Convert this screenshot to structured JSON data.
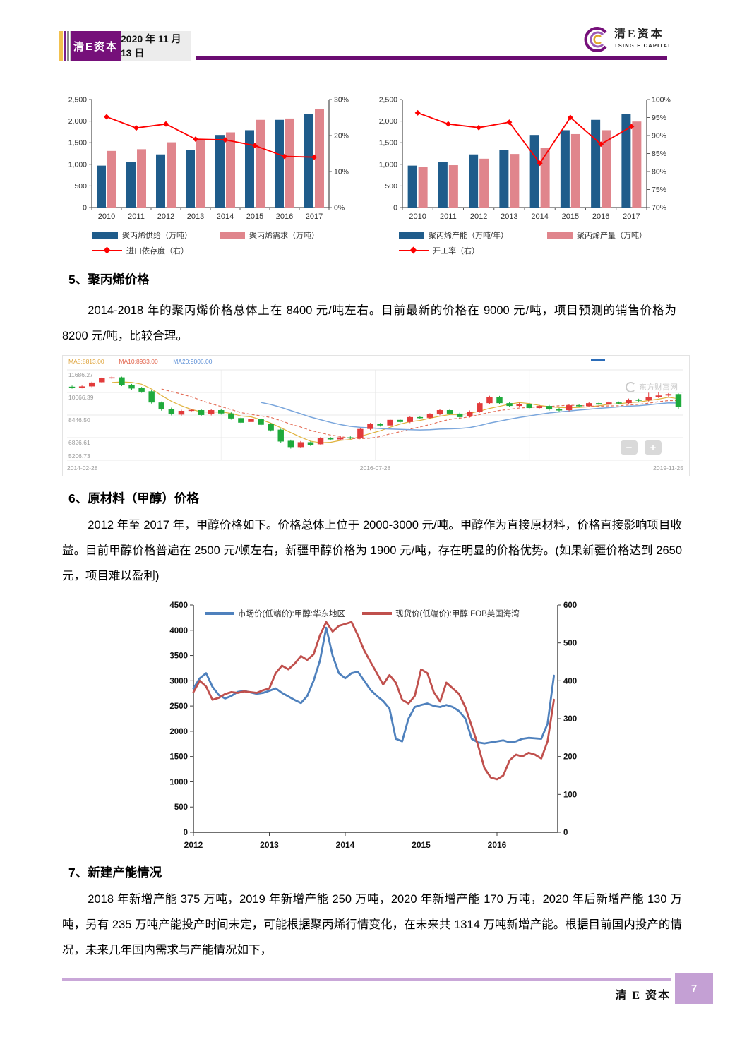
{
  "header": {
    "brand": "清E资本",
    "date": "2020 年 11 月 13 日",
    "logo_title": "清E资本",
    "logo_subtitle": "TSING E CAPITAL"
  },
  "sections": {
    "s5_heading": "5、聚丙烯价格",
    "s5_para": "2014-2018 年的聚丙烯价格总体上在 8400 元/吨左右。目前最新的价格在 9000 元/吨，项目预测的销售价格为 8200 元/吨，比较合理。",
    "s6_heading": "6、原材料（甲醇）价格",
    "s6_para": "2012 年至 2017 年，甲醇价格如下。价格总体上位于 2000-3000 元/吨。甲醇作为直接原材料，价格直接影响项目收益。目前甲醇价格普遍在 2500 元/顿左右，新疆甲醇价格为 1900 元/吨，存在明显的价格优势。(如果新疆价格达到 2650 元，项目难以盈利)",
    "s7_heading": "7、新建产能情况",
    "s7_para": "2018 年新增产能 375 万吨，2019 年新增产能 250 万吨，2020 年新增产能 170 万吨，2020 年后新增产能 130 万吨，另有 235 万吨产能投产时间未定，可能根据聚丙烯行情变化，在未来共 1314 万吨新增产能。根据目前国内投产的情况，未来几年国内需求与产能情况如下，"
  },
  "footer": {
    "brand": "清 E 资本",
    "page": "7"
  },
  "chart_data": [
    {
      "type": "bar",
      "categories": [
        "2010",
        "2011",
        "2012",
        "2013",
        "2014",
        "2015",
        "2016",
        "2017"
      ],
      "series": [
        {
          "name": "聚丙烯供给（万吨）",
          "kind": "bar",
          "color": "#1f5c8b",
          "values": [
            970,
            1050,
            1230,
            1330,
            1680,
            1790,
            2030,
            2160
          ]
        },
        {
          "name": "聚丙烯需求（万吨）",
          "kind": "bar",
          "color": "#e0858c",
          "values": [
            1310,
            1350,
            1510,
            1570,
            1740,
            2030,
            2060,
            2280
          ]
        },
        {
          "name": "进口依存度（右）",
          "kind": "line",
          "axis": "right",
          "color": "#fe0000",
          "values": [
            25.2,
            22.1,
            23.2,
            19.0,
            18.8,
            17.2,
            14.2,
            14.0
          ]
        }
      ],
      "ylim_left": [
        0,
        2500
      ],
      "yticks_left": [
        [
          0,
          "0"
        ],
        [
          500,
          "500"
        ],
        [
          1000,
          "1,000"
        ],
        [
          1500,
          "1,500"
        ],
        [
          2000,
          "2,000"
        ],
        [
          2500,
          "2,500"
        ]
      ],
      "ylim_right": [
        0,
        30
      ],
      "yticks_right": [
        [
          0,
          "0%"
        ],
        [
          10,
          "10%"
        ],
        [
          20,
          "20%"
        ],
        [
          30,
          "30%"
        ]
      ]
    },
    {
      "type": "bar",
      "categories": [
        "2010",
        "2011",
        "2012",
        "2013",
        "2014",
        "2015",
        "2016",
        "2017"
      ],
      "series": [
        {
          "name": "聚丙烯产能（万吨/年）",
          "kind": "bar",
          "color": "#1f5c8b",
          "values": [
            970,
            1050,
            1230,
            1330,
            1680,
            1790,
            2030,
            2160
          ]
        },
        {
          "name": "聚丙烯产量（万吨）",
          "kind": "bar",
          "color": "#e0858c",
          "values": [
            940,
            980,
            1130,
            1240,
            1380,
            1700,
            1790,
            1990
          ]
        },
        {
          "name": "开工率（右）",
          "kind": "line",
          "axis": "right",
          "color": "#fe0000",
          "values": [
            96.3,
            93.2,
            92.2,
            93.7,
            82.3,
            95.0,
            87.6,
            92.5
          ]
        }
      ],
      "ylim_left": [
        0,
        2500
      ],
      "yticks_left": [
        [
          0,
          "0"
        ],
        [
          500,
          "500"
        ],
        [
          1000,
          "1,000"
        ],
        [
          1500,
          "1,500"
        ],
        [
          2000,
          "2,000"
        ],
        [
          2500,
          "2,500"
        ]
      ],
      "ylim_right": [
        70,
        100
      ],
      "yticks_right": [
        [
          70,
          "70%"
        ],
        [
          75,
          "75%"
        ],
        [
          80,
          "80%"
        ],
        [
          85,
          "85%"
        ],
        [
          90,
          "90%"
        ],
        [
          95,
          "95%"
        ],
        [
          100,
          "100%"
        ]
      ]
    },
    {
      "type": "candlestick",
      "ma_labels": [
        {
          "text": "MA5:8813.00",
          "color": "#dfa43c"
        },
        {
          "text": "MA10:8933.00",
          "color": "#e2654d"
        },
        {
          "text": "MA20:9006.00",
          "color": "#5c8fd6"
        }
      ],
      "ma_colors": {
        "ma5": "#e0b33e",
        "ma10": "#e4705a",
        "ma20": "#7aa6dc"
      },
      "up_color": "#e23b3b",
      "down_color": "#1faa3c",
      "ylim": [
        5206.73,
        11686.27
      ],
      "yticks": [
        "11686.27",
        "10066.39",
        "8446.50",
        "6826.61",
        "5206.73"
      ],
      "xticks": [
        "2014-02-28",
        "2016-07-28",
        "2019-11-25"
      ],
      "watermark": "东方财富网",
      "zoom_out_label": "−",
      "zoom_in_label": "+",
      "candles": [
        [
          10480,
          10560,
          10340,
          10400
        ],
        [
          10420,
          10560,
          10360,
          10500
        ],
        [
          10500,
          10840,
          10440,
          10780
        ],
        [
          10800,
          11140,
          10740,
          11080
        ],
        [
          11080,
          11230,
          11020,
          11150
        ],
        [
          11150,
          11200,
          10520,
          10600
        ],
        [
          10600,
          10680,
          10260,
          10350
        ],
        [
          10380,
          10460,
          10040,
          10120
        ],
        [
          10150,
          10220,
          9270,
          9350
        ],
        [
          9350,
          9420,
          8760,
          8850
        ],
        [
          8900,
          8980,
          8420,
          8500
        ],
        [
          8480,
          8830,
          8400,
          8750
        ],
        [
          8750,
          8900,
          8670,
          8820
        ],
        [
          8800,
          8870,
          8370,
          8450
        ],
        [
          8500,
          8880,
          8420,
          8800
        ],
        [
          8800,
          8870,
          8480,
          8560
        ],
        [
          8560,
          8640,
          8120,
          8200
        ],
        [
          8230,
          8300,
          7820,
          7900
        ],
        [
          7950,
          8230,
          7870,
          8150
        ],
        [
          8150,
          8220,
          7670,
          7750
        ],
        [
          7800,
          7870,
          7270,
          7350
        ],
        [
          7400,
          7470,
          6470,
          6550
        ],
        [
          6600,
          6680,
          6040,
          6150
        ],
        [
          6150,
          6580,
          6070,
          6500
        ],
        [
          6500,
          6570,
          6220,
          6300
        ],
        [
          6350,
          6880,
          6270,
          6800
        ],
        [
          6800,
          6870,
          6620,
          6700
        ],
        [
          6700,
          6930,
          6620,
          6850
        ],
        [
          6850,
          6920,
          6720,
          6800
        ],
        [
          6800,
          7530,
          6740,
          7450
        ],
        [
          7450,
          7880,
          7370,
          7800
        ],
        [
          7800,
          7870,
          7620,
          7700
        ],
        [
          7700,
          8180,
          7620,
          8100
        ],
        [
          8100,
          8170,
          7870,
          7950
        ],
        [
          7950,
          8380,
          7870,
          8300
        ],
        [
          8300,
          8380,
          8170,
          8250
        ],
        [
          8250,
          8580,
          8170,
          8500
        ],
        [
          8500,
          8880,
          8420,
          8800
        ],
        [
          8800,
          8870,
          8470,
          8550
        ],
        [
          8550,
          8620,
          8220,
          8300
        ],
        [
          8350,
          8780,
          8270,
          8700
        ],
        [
          8700,
          9380,
          8620,
          9300
        ],
        [
          9300,
          9830,
          9220,
          9750
        ],
        [
          9750,
          9820,
          9220,
          9300
        ],
        [
          9300,
          9370,
          9020,
          9100
        ],
        [
          9100,
          9330,
          9020,
          9250
        ],
        [
          9250,
          9320,
          8870,
          8950
        ],
        [
          8950,
          9180,
          8870,
          9100
        ],
        [
          9100,
          9170,
          8770,
          8850
        ],
        [
          8850,
          8960,
          8700,
          8800
        ],
        [
          8800,
          9230,
          8720,
          9150
        ],
        [
          9150,
          9220,
          9010,
          9100
        ],
        [
          9100,
          9380,
          9020,
          9300
        ],
        [
          9300,
          9370,
          9110,
          9200
        ],
        [
          9200,
          9430,
          9120,
          9350
        ],
        [
          9350,
          9420,
          9210,
          9300
        ],
        [
          9300,
          9630,
          9220,
          9550
        ],
        [
          9550,
          9620,
          9410,
          9500
        ],
        [
          9500,
          10050,
          9420,
          9750
        ],
        [
          9750,
          10100,
          9670,
          9850
        ],
        [
          9850,
          10020,
          9770,
          9950
        ],
        [
          9950,
          10000,
          8870,
          9050
        ]
      ]
    },
    {
      "type": "line",
      "x_start": 2012.0,
      "x_step": 0.08333,
      "xlim": [
        2012,
        2016.8
      ],
      "xticks": [
        "2012",
        "2013",
        "2014",
        "2015",
        "2016"
      ],
      "ylim_left": [
        0,
        4500
      ],
      "yticks_left": [
        0,
        500,
        1000,
        1500,
        2000,
        2500,
        3000,
        3500,
        4000,
        4500
      ],
      "ylim_right": [
        0,
        600
      ],
      "yticks_right": [
        0,
        100,
        200,
        300,
        400,
        500,
        600
      ],
      "series": [
        {
          "name": "市场价(低端价):甲醇:华东地区",
          "color": "#4f81bd",
          "axis": "left",
          "values": [
            2850,
            3050,
            3150,
            2880,
            2720,
            2650,
            2700,
            2780,
            2800,
            2770,
            2740,
            2760,
            2800,
            2850,
            2760,
            2690,
            2620,
            2560,
            2700,
            3000,
            3400,
            4050,
            3500,
            3150,
            3050,
            3150,
            3180,
            3000,
            2820,
            2700,
            2600,
            2450,
            1850,
            1800,
            2250,
            2480,
            2520,
            2550,
            2500,
            2480,
            2520,
            2480,
            2400,
            2250,
            1850,
            1780,
            1760,
            1780,
            1800,
            1820,
            1780,
            1800,
            1850,
            1870,
            1860,
            1850,
            2150,
            3100
          ]
        },
        {
          "name": "现货价(低端价):甲醇:FOB美国海湾",
          "color": "#c0504d",
          "axis": "right",
          "values": [
            370,
            400,
            385,
            350,
            355,
            365,
            370,
            368,
            372,
            370,
            368,
            375,
            380,
            420,
            440,
            430,
            445,
            465,
            455,
            470,
            520,
            555,
            530,
            545,
            550,
            555,
            520,
            480,
            450,
            420,
            390,
            415,
            395,
            350,
            340,
            360,
            430,
            420,
            370,
            345,
            395,
            380,
            365,
            330,
            280,
            230,
            170,
            145,
            140,
            150,
            190,
            205,
            200,
            210,
            205,
            195,
            240,
            350
          ]
        }
      ]
    }
  ]
}
